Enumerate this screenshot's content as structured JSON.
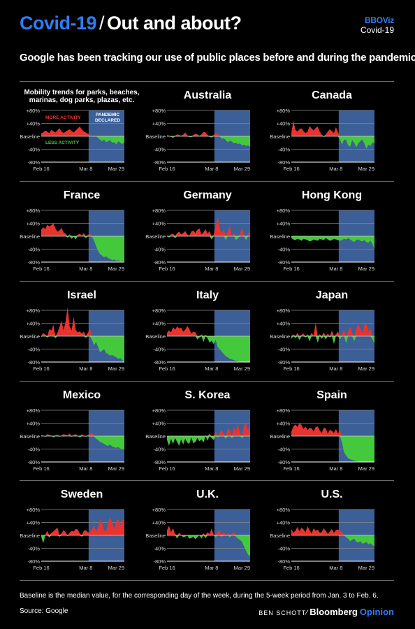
{
  "header": {
    "title_part1": "Covid-19",
    "title_sep": "/",
    "title_part2": "Out and about?",
    "brand_line1": "BBOViz",
    "brand_line2": "Covid-19"
  },
  "subtitle": "Google has been tracking our use of public places before and during the pandemic",
  "colors": {
    "more": "#e8342f",
    "less": "#45c93c",
    "pandemic": "#3c5f98",
    "background": "#000000"
  },
  "intro": {
    "title": "Mobility trends for parks, beaches, marinas, dog parks, plazas, etc.",
    "more_label": "MORE ACTIVITY",
    "less_label": "LESS ACTIVITY",
    "pandemic_label": "PANDEMIC DECLARED"
  },
  "axis": {
    "y_ticks": [
      "+80%",
      "+40%",
      "Baseline",
      "-40%",
      "-80%"
    ],
    "y_values": [
      80,
      40,
      0,
      -40,
      -80
    ],
    "x_ticks": [
      "Feb 16",
      "Mar 8",
      "Mar 29"
    ]
  },
  "chart_data": {
    "type": "area",
    "title": "Mobility trends for parks, beaches, marinas, dog parks, plazas, etc.",
    "unit": "% change from baseline",
    "x_start": "Feb 16",
    "x_end": "Mar 29",
    "pandemic_declared_from": "Mar 11",
    "ylim": [
      -80,
      80
    ],
    "series": [
      {
        "name": "Intro example",
        "values": [
          10,
          12,
          18,
          14,
          10,
          20,
          16,
          12,
          18,
          25,
          15,
          10,
          14,
          18,
          22,
          16,
          12,
          18,
          24,
          30,
          22,
          15,
          12,
          8,
          5,
          2,
          -2,
          0,
          -5,
          -10,
          -15,
          -10,
          -18,
          -15,
          -12,
          -20,
          -18,
          -25,
          -15,
          -20,
          -24,
          -18
        ]
      },
      {
        "name": "Australia",
        "values": [
          4,
          2,
          -2,
          -5,
          2,
          6,
          4,
          2,
          5,
          12,
          3,
          -2,
          -3,
          4,
          8,
          6,
          2,
          6,
          14,
          12,
          4,
          -2,
          -4,
          4,
          10,
          8,
          2,
          -8,
          -6,
          -12,
          -18,
          -14,
          -16,
          -22,
          -20,
          -24,
          -22,
          -28,
          -26,
          -30,
          -28,
          -32
        ]
      },
      {
        "name": "Canada",
        "values": [
          10,
          48,
          20,
          15,
          22,
          25,
          16,
          10,
          14,
          32,
          24,
          18,
          26,
          30,
          15,
          5,
          -2,
          6,
          15,
          22,
          16,
          10,
          28,
          12,
          -10,
          -25,
          -10,
          -12,
          -28,
          -32,
          -12,
          -20,
          -34,
          -22,
          -15,
          -10,
          -22,
          -38,
          -26,
          -30,
          -18,
          -22
        ]
      },
      {
        "name": "France",
        "values": [
          20,
          28,
          22,
          36,
          30,
          34,
          40,
          24,
          14,
          18,
          26,
          12,
          8,
          -4,
          6,
          -8,
          -2,
          -10,
          4,
          8,
          2,
          10,
          -6,
          4,
          8,
          -2,
          -12,
          -30,
          -45,
          -55,
          -60,
          -65,
          -62,
          -68,
          -70,
          -74,
          -72,
          -76,
          -74,
          -78,
          -76,
          -78
        ]
      },
      {
        "name": "Germany",
        "values": [
          2,
          -4,
          6,
          8,
          -6,
          10,
          14,
          6,
          10,
          16,
          6,
          2,
          14,
          18,
          10,
          20,
          24,
          6,
          12,
          22,
          8,
          16,
          -10,
          4,
          30,
          62,
          26,
          8,
          22,
          -12,
          14,
          34,
          2,
          10,
          -12,
          -6,
          8,
          26,
          4,
          -12,
          6,
          18
        ]
      },
      {
        "name": "Hong Kong",
        "values": [
          -6,
          -10,
          -12,
          -8,
          -10,
          -14,
          -8,
          -10,
          -12,
          -16,
          -14,
          -10,
          -12,
          -14,
          -8,
          -10,
          -12,
          -6,
          -10,
          -14,
          -12,
          -8,
          -10,
          -12,
          -14,
          -12,
          -8,
          -10,
          -6,
          -10,
          -14,
          -18,
          -12,
          -10,
          -14,
          -16,
          -12,
          -18,
          -20,
          -14,
          -24,
          -40
        ]
      },
      {
        "name": "Israel",
        "values": [
          -2,
          10,
          5,
          -4,
          22,
          18,
          35,
          -6,
          10,
          28,
          48,
          18,
          45,
          90,
          30,
          18,
          60,
          20,
          12,
          15,
          8,
          14,
          -5,
          10,
          25,
          -10,
          -28,
          -18,
          -32,
          -50,
          -45,
          -40,
          -52,
          -55,
          -60,
          -58,
          -62,
          -65,
          -70,
          -68,
          -74,
          -80
        ]
      },
      {
        "name": "Italy",
        "values": [
          10,
          18,
          12,
          28,
          20,
          30,
          24,
          26,
          14,
          20,
          32,
          22,
          8,
          14,
          12,
          -10,
          -4,
          6,
          -18,
          4,
          -6,
          -20,
          -14,
          -24,
          -12,
          -34,
          -40,
          -48,
          -55,
          -62,
          -66,
          -70,
          -72,
          -74,
          -76,
          -78,
          -78,
          -80,
          -80,
          -80,
          -80,
          -80
        ]
      },
      {
        "name": "Japan",
        "values": [
          -8,
          6,
          -6,
          10,
          -12,
          4,
          8,
          -4,
          6,
          -16,
          10,
          2,
          42,
          -20,
          6,
          -8,
          12,
          -10,
          8,
          -4,
          18,
          -24,
          6,
          14,
          -10,
          8,
          20,
          -22,
          14,
          30,
          10,
          -16,
          22,
          38,
          24,
          10,
          34,
          40,
          16,
          22,
          -10,
          -24
        ]
      },
      {
        "name": "Mexico",
        "values": [
          4,
          2,
          -2,
          6,
          4,
          2,
          -4,
          3,
          5,
          -2,
          2,
          6,
          4,
          2,
          8,
          -2,
          4,
          6,
          2,
          -4,
          6,
          2,
          -2,
          3,
          8,
          10,
          2,
          -8,
          -12,
          -18,
          -20,
          -24,
          -28,
          -30,
          -26,
          -32,
          -34,
          -36,
          -34,
          -38,
          -40,
          -42
        ]
      },
      {
        "name": "S. Korea",
        "values": [
          -12,
          -30,
          -8,
          -24,
          -6,
          -18,
          -30,
          -10,
          -26,
          -8,
          -20,
          -24,
          -4,
          -22,
          -18,
          -6,
          -16,
          -10,
          -20,
          2,
          -14,
          8,
          -6,
          -12,
          14,
          -4,
          10,
          20,
          6,
          -8,
          24,
          18,
          -6,
          30,
          14,
          38,
          10,
          -6,
          34,
          40,
          16,
          38
        ]
      },
      {
        "name": "Spain",
        "values": [
          14,
          30,
          36,
          28,
          40,
          34,
          22,
          30,
          18,
          26,
          24,
          14,
          28,
          30,
          18,
          10,
          26,
          24,
          8,
          20,
          16,
          10,
          22,
          8,
          18,
          -20,
          -50,
          -60,
          -68,
          -72,
          -74,
          -76,
          -78,
          -78,
          -80,
          -80,
          -80,
          -80,
          -80,
          -80,
          -80,
          -80
        ]
      },
      {
        "name": "Sweden",
        "values": [
          -4,
          -24,
          2,
          14,
          -6,
          8,
          12,
          18,
          24,
          -4,
          6,
          16,
          10,
          -2,
          8,
          14,
          12,
          20,
          18,
          6,
          -4,
          14,
          16,
          10,
          8,
          18,
          30,
          14,
          24,
          48,
          40,
          16,
          12,
          40,
          56,
          38,
          20,
          44,
          50,
          30,
          46,
          50
        ]
      },
      {
        "name": "U.K.",
        "values": [
          16,
          30,
          10,
          22,
          4,
          -10,
          8,
          2,
          -6,
          -4,
          2,
          -10,
          -8,
          -4,
          -12,
          -6,
          2,
          -10,
          6,
          -8,
          10,
          4,
          22,
          2,
          -6,
          12,
          16,
          -4,
          12,
          -2,
          6,
          -6,
          4,
          12,
          -4,
          -10,
          -14,
          -20,
          -34,
          -48,
          -60,
          -64
        ]
      },
      {
        "name": "U.S.",
        "values": [
          20,
          8,
          14,
          26,
          12,
          24,
          18,
          10,
          28,
          16,
          6,
          22,
          14,
          18,
          8,
          10,
          22,
          14,
          4,
          12,
          20,
          8,
          16,
          18,
          14,
          10,
          2,
          -6,
          -10,
          -18,
          -14,
          -10,
          -20,
          -22,
          -18,
          -26,
          -24,
          -20,
          -28,
          -24,
          -30,
          -34
        ]
      }
    ]
  },
  "footer": {
    "baseline_note": "Baseline is the median value, for the corresponding day of the week, during the 5-week period from Jan. 3 to Feb. 6.",
    "source": "Source: Google",
    "author": "BEN SCHOTT",
    "slash": "⁄",
    "brand_bold": "Bloomberg",
    "brand_accent": "Opinion"
  }
}
